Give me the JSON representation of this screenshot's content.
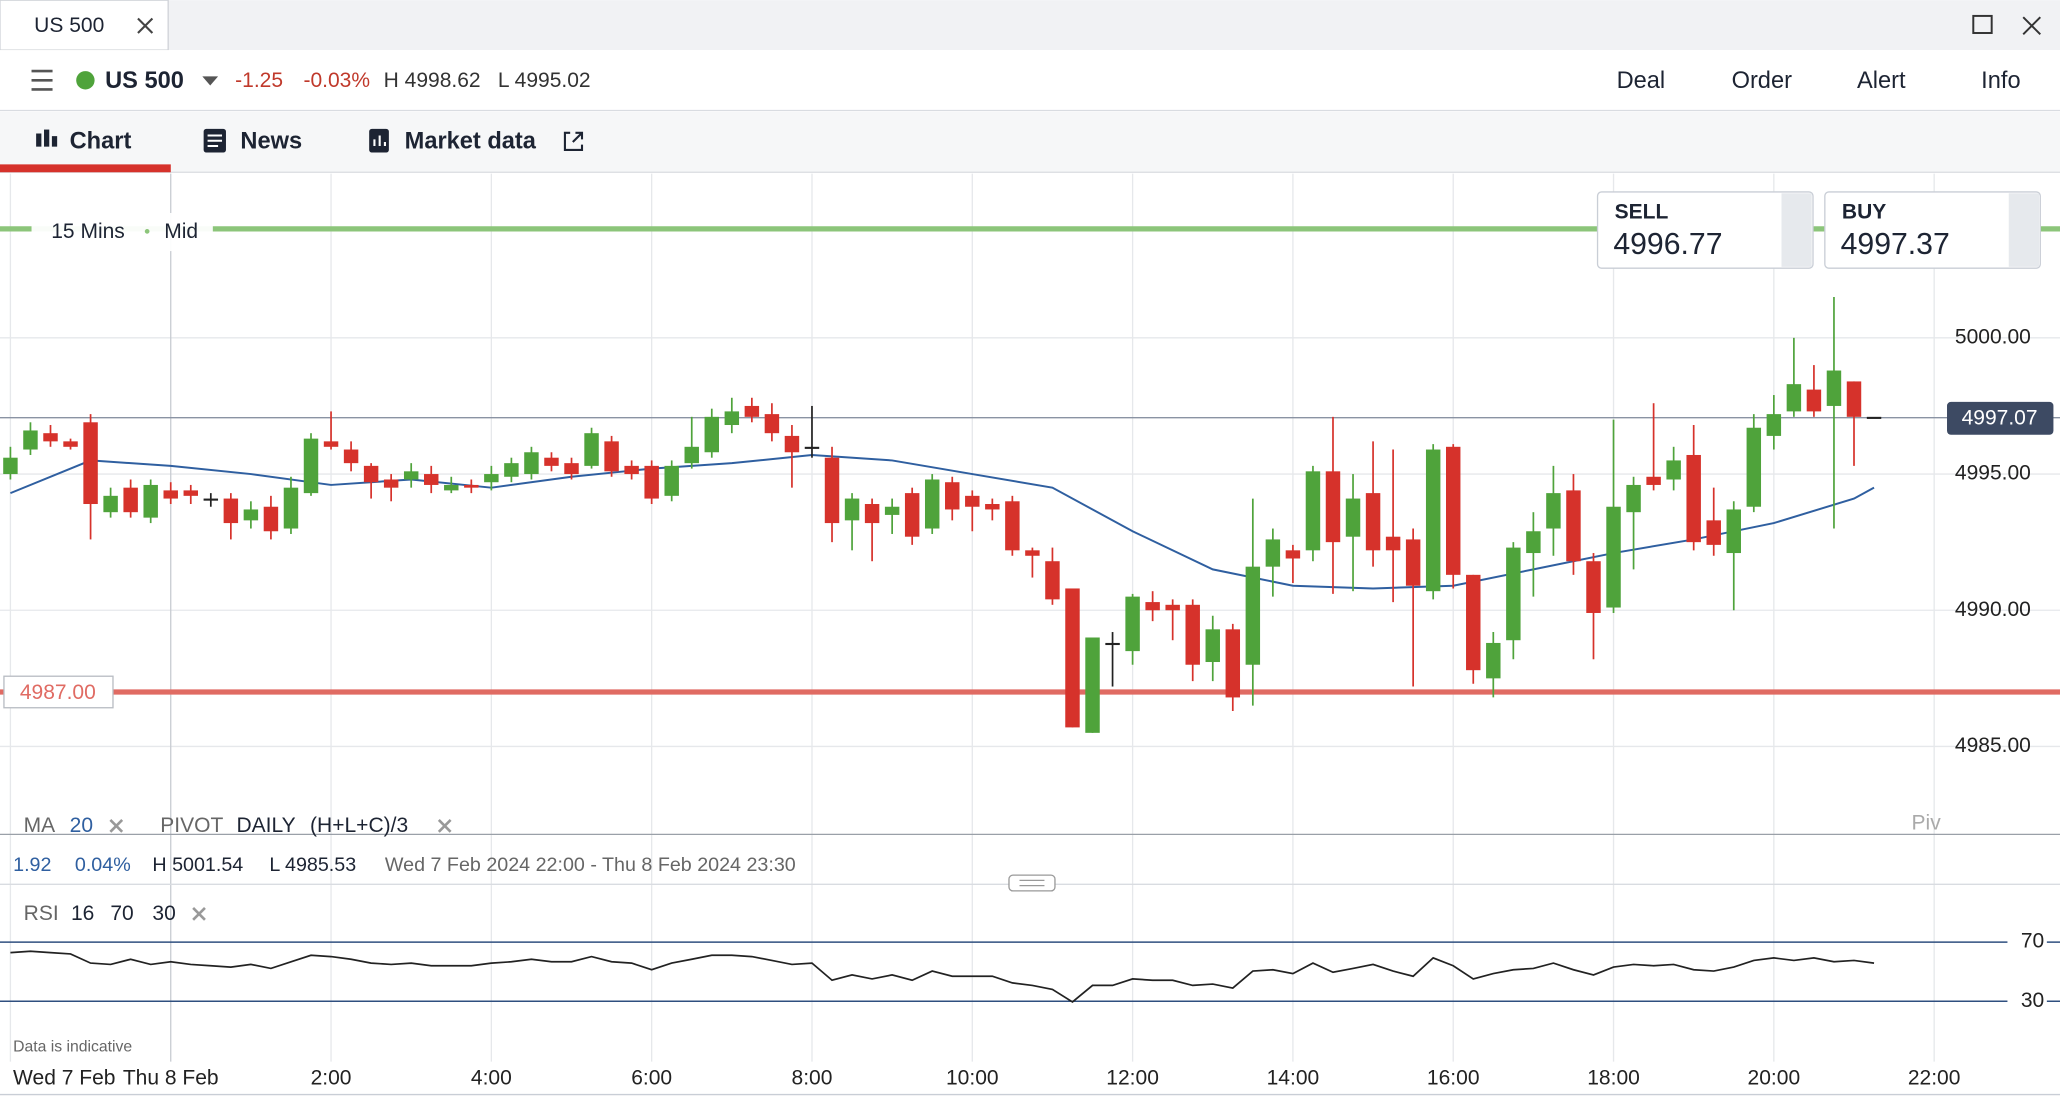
{
  "window_tab": "US 500",
  "header": {
    "instrument": "US 500",
    "change": "-1.25",
    "change_pct": "-0.03%",
    "high": "H 4998.62",
    "low": "L 4995.02",
    "actions": [
      "Deal",
      "Order",
      "Alert",
      "Info"
    ]
  },
  "tabs": [
    "Chart",
    "News",
    "Market data"
  ],
  "quote": {
    "sell_label": "SELL",
    "sell": "4996.77",
    "buy_label": "BUY",
    "buy": "4997.37"
  },
  "chart_data": {
    "type": "candlestick",
    "interval": "15 Mins",
    "price_type": "Mid",
    "up_color": "#4fa33b",
    "down_color": "#d6322b",
    "flat_color": "#222222",
    "grid": true,
    "xlim": [
      21.87,
      47.57
    ],
    "xticks": [
      {
        "value": 22,
        "label": "Wed 7 Feb"
      },
      {
        "value": 24,
        "label": "Thu 8 Feb"
      },
      {
        "value": 26,
        "label": "2:00"
      },
      {
        "value": 28,
        "label": "4:00"
      },
      {
        "value": 30,
        "label": "6:00"
      },
      {
        "value": 32,
        "label": "8:00"
      },
      {
        "value": 34,
        "label": "10:00"
      },
      {
        "value": 36,
        "label": "12:00"
      },
      {
        "value": 38,
        "label": "14:00"
      },
      {
        "value": 40,
        "label": "16:00"
      },
      {
        "value": 42,
        "label": "18:00"
      },
      {
        "value": 44,
        "label": "20:00"
      },
      {
        "value": 46,
        "label": "22:00"
      }
    ],
    "ylim": [
      4981.82,
      5006.03
    ],
    "yticks": [
      {
        "value": 4985,
        "label": "4985.00"
      },
      {
        "value": 4990,
        "label": "4990.00"
      },
      {
        "value": 4995,
        "label": "4995.00"
      },
      {
        "value": 5000,
        "label": "5000.00"
      }
    ],
    "candles": [
      {
        "x": 22,
        "open": 4995.0,
        "high": 4996.0,
        "low": 4994.8,
        "close": 4995.6
      },
      {
        "x": 22.25,
        "open": 4995.9,
        "high": 4996.9,
        "low": 4995.7,
        "close": 4996.6
      },
      {
        "x": 22.5,
        "open": 4996.5,
        "high": 4996.8,
        "low": 4996.0,
        "close": 4996.2
      },
      {
        "x": 22.75,
        "open": 4996.2,
        "high": 4996.3,
        "low": 4995.9,
        "close": 4996.0
      },
      {
        "x": 23,
        "open": 4996.9,
        "high": 4997.2,
        "low": 4992.6,
        "close": 4993.9
      },
      {
        "x": 23.25,
        "open": 4993.6,
        "high": 4994.5,
        "low": 4993.4,
        "close": 4994.2
      },
      {
        "x": 23.5,
        "open": 4994.5,
        "high": 4994.8,
        "low": 4993.4,
        "close": 4993.6
      },
      {
        "x": 23.75,
        "open": 4993.4,
        "high": 4994.8,
        "low": 4993.2,
        "close": 4994.6
      },
      {
        "x": 24,
        "open": 4994.4,
        "high": 4994.7,
        "low": 4993.9,
        "close": 4994.1
      },
      {
        "x": 24.25,
        "open": 4994.4,
        "high": 4994.6,
        "low": 4993.9,
        "close": 4994.2
      },
      {
        "x": 24.5,
        "open": 4994.1,
        "high": 4994.3,
        "low": 4993.8,
        "close": 4994.1
      },
      {
        "x": 24.75,
        "open": 4994.1,
        "high": 4994.3,
        "low": 4992.6,
        "close": 4993.2
      },
      {
        "x": 25,
        "open": 4993.3,
        "high": 4994.0,
        "low": 4993.0,
        "close": 4993.7
      },
      {
        "x": 25.25,
        "open": 4993.8,
        "high": 4994.2,
        "low": 4992.6,
        "close": 4992.9
      },
      {
        "x": 25.5,
        "open": 4993.0,
        "high": 4994.9,
        "low": 4992.8,
        "close": 4994.5
      },
      {
        "x": 25.75,
        "open": 4994.3,
        "high": 4996.5,
        "low": 4994.2,
        "close": 4996.3
      },
      {
        "x": 26,
        "open": 4996.2,
        "high": 4997.3,
        "low": 4995.9,
        "close": 4996.0
      },
      {
        "x": 26.25,
        "open": 4995.9,
        "high": 4996.2,
        "low": 4995.1,
        "close": 4995.4
      },
      {
        "x": 26.5,
        "open": 4995.3,
        "high": 4995.4,
        "low": 4994.1,
        "close": 4994.7
      },
      {
        "x": 26.75,
        "open": 4994.8,
        "high": 4995.0,
        "low": 4994.0,
        "close": 4994.5
      },
      {
        "x": 27,
        "open": 4994.8,
        "high": 4995.4,
        "low": 4994.5,
        "close": 4995.1
      },
      {
        "x": 27.25,
        "open": 4995.0,
        "high": 4995.3,
        "low": 4994.3,
        "close": 4994.6
      },
      {
        "x": 27.5,
        "open": 4994.4,
        "high": 4994.9,
        "low": 4994.3,
        "close": 4994.6
      },
      {
        "x": 27.75,
        "open": 4994.6,
        "high": 4994.8,
        "low": 4994.3,
        "close": 4994.5
      },
      {
        "x": 28,
        "open": 4994.7,
        "high": 4995.3,
        "low": 4994.4,
        "close": 4995.0
      },
      {
        "x": 28.25,
        "open": 4994.9,
        "high": 4995.6,
        "low": 4994.7,
        "close": 4995.4
      },
      {
        "x": 28.5,
        "open": 4995.0,
        "high": 4996.0,
        "low": 4994.8,
        "close": 4995.8
      },
      {
        "x": 28.75,
        "open": 4995.6,
        "high": 4995.8,
        "low": 4995.1,
        "close": 4995.3
      },
      {
        "x": 29,
        "open": 4995.4,
        "high": 4995.6,
        "low": 4994.8,
        "close": 4995.0
      },
      {
        "x": 29.25,
        "open": 4995.3,
        "high": 4996.7,
        "low": 4995.2,
        "close": 4996.5
      },
      {
        "x": 29.5,
        "open": 4996.2,
        "high": 4996.4,
        "low": 4994.9,
        "close": 4995.1
      },
      {
        "x": 29.75,
        "open": 4995.3,
        "high": 4995.5,
        "low": 4994.8,
        "close": 4995.0
      },
      {
        "x": 30,
        "open": 4995.3,
        "high": 4995.5,
        "low": 4993.9,
        "close": 4994.1
      },
      {
        "x": 30.25,
        "open": 4994.2,
        "high": 4995.5,
        "low": 4994.0,
        "close": 4995.3
      },
      {
        "x": 30.5,
        "open": 4995.4,
        "high": 4997.1,
        "low": 4995.2,
        "close": 4996.0
      },
      {
        "x": 30.75,
        "open": 4995.8,
        "high": 4997.4,
        "low": 4995.6,
        "close": 4997.1
      },
      {
        "x": 31,
        "open": 4996.8,
        "high": 4997.8,
        "low": 4996.5,
        "close": 4997.3
      },
      {
        "x": 31.25,
        "open": 4997.5,
        "high": 4997.8,
        "low": 4996.9,
        "close": 4997.1
      },
      {
        "x": 31.5,
        "open": 4997.2,
        "high": 4997.6,
        "low": 4996.2,
        "close": 4996.5
      },
      {
        "x": 31.75,
        "open": 4996.4,
        "high": 4996.8,
        "low": 4994.5,
        "close": 4995.8
      },
      {
        "x": 32,
        "open": 4996.0,
        "high": 4997.5,
        "low": 4995.6,
        "close": 4996.0
      },
      {
        "x": 32.25,
        "open": 4995.6,
        "high": 4996.0,
        "low": 4992.5,
        "close": 4993.2
      },
      {
        "x": 32.5,
        "open": 4993.3,
        "high": 4994.3,
        "low": 4992.2,
        "close": 4994.1
      },
      {
        "x": 32.75,
        "open": 4993.9,
        "high": 4994.1,
        "low": 4991.8,
        "close": 4993.2
      },
      {
        "x": 33,
        "open": 4993.5,
        "high": 4994.1,
        "low": 4992.8,
        "close": 4993.8
      },
      {
        "x": 33.25,
        "open": 4994.3,
        "high": 4994.5,
        "low": 4992.4,
        "close": 4992.7
      },
      {
        "x": 33.5,
        "open": 4993.0,
        "high": 4995.0,
        "low": 4992.8,
        "close": 4994.8
      },
      {
        "x": 33.75,
        "open": 4994.7,
        "high": 4994.9,
        "low": 4993.3,
        "close": 4993.7
      },
      {
        "x": 34,
        "open": 4994.2,
        "high": 4994.4,
        "low": 4992.9,
        "close": 4993.8
      },
      {
        "x": 34.25,
        "open": 4993.9,
        "high": 4994.1,
        "low": 4993.3,
        "close": 4993.7
      },
      {
        "x": 34.5,
        "open": 4994.0,
        "high": 4994.2,
        "low": 4992.0,
        "close": 4992.2
      },
      {
        "x": 34.75,
        "open": 4992.2,
        "high": 4992.3,
        "low": 4991.2,
        "close": 4992.0
      },
      {
        "x": 35,
        "open": 4991.8,
        "high": 4992.3,
        "low": 4990.2,
        "close": 4990.4
      },
      {
        "x": 35.25,
        "open": 4990.8,
        "high": 4990.8,
        "low": 4985.7,
        "close": 4985.7
      },
      {
        "x": 35.5,
        "open": 4985.5,
        "high": 4989.0,
        "low": 4985.5,
        "close": 4989.0
      },
      {
        "x": 35.75,
        "open": 4988.8,
        "high": 4989.2,
        "low": 4987.2,
        "close": 4988.8
      },
      {
        "x": 36,
        "open": 4988.5,
        "high": 4990.6,
        "low": 4988.0,
        "close": 4990.5
      },
      {
        "x": 36.25,
        "open": 4990.3,
        "high": 4990.7,
        "low": 4989.6,
        "close": 4990.0
      },
      {
        "x": 36.5,
        "open": 4990.2,
        "high": 4990.4,
        "low": 4988.9,
        "close": 4990.0
      },
      {
        "x": 36.75,
        "open": 4990.2,
        "high": 4990.4,
        "low": 4987.4,
        "close": 4988.0
      },
      {
        "x": 37,
        "open": 4988.1,
        "high": 4989.8,
        "low": 4987.4,
        "close": 4989.3
      },
      {
        "x": 37.25,
        "open": 4989.3,
        "high": 4989.5,
        "low": 4986.3,
        "close": 4986.8
      },
      {
        "x": 37.5,
        "open": 4988.0,
        "high": 4994.1,
        "low": 4986.5,
        "close": 4991.6
      },
      {
        "x": 37.75,
        "open": 4991.6,
        "high": 4993.0,
        "low": 4990.5,
        "close": 4992.6
      },
      {
        "x": 38,
        "open": 4992.2,
        "high": 4992.4,
        "low": 4991.0,
        "close": 4991.9
      },
      {
        "x": 38.25,
        "open": 4992.2,
        "high": 4995.3,
        "low": 4991.8,
        "close": 4995.1
      },
      {
        "x": 38.5,
        "open": 4995.1,
        "high": 4997.1,
        "low": 4990.6,
        "close": 4992.5
      },
      {
        "x": 38.75,
        "open": 4992.7,
        "high": 4995.0,
        "low": 4990.7,
        "close": 4994.1
      },
      {
        "x": 39,
        "open": 4994.3,
        "high": 4996.2,
        "low": 4991.6,
        "close": 4992.2
      },
      {
        "x": 39.25,
        "open": 4992.7,
        "high": 4995.9,
        "low": 4990.3,
        "close": 4992.2
      },
      {
        "x": 39.5,
        "open": 4992.6,
        "high": 4993.0,
        "low": 4987.2,
        "close": 4990.9
      },
      {
        "x": 39.75,
        "open": 4990.7,
        "high": 4996.1,
        "low": 4990.4,
        "close": 4995.9
      },
      {
        "x": 40,
        "open": 4996.0,
        "high": 4996.1,
        "low": 4990.8,
        "close": 4991.3
      },
      {
        "x": 40.25,
        "open": 4991.3,
        "high": 4991.3,
        "low": 4987.3,
        "close": 4987.8
      },
      {
        "x": 40.5,
        "open": 4987.5,
        "high": 4989.2,
        "low": 4986.8,
        "close": 4988.8
      },
      {
        "x": 40.75,
        "open": 4988.9,
        "high": 4992.5,
        "low": 4988.2,
        "close": 4992.3
      },
      {
        "x": 41,
        "open": 4992.1,
        "high": 4993.6,
        "low": 4990.5,
        "close": 4992.9
      },
      {
        "x": 41.25,
        "open": 4993.0,
        "high": 4995.3,
        "low": 4992.0,
        "close": 4994.3
      },
      {
        "x": 41.5,
        "open": 4994.4,
        "high": 4995.0,
        "low": 4991.3,
        "close": 4991.8
      },
      {
        "x": 41.75,
        "open": 4991.8,
        "high": 4992.1,
        "low": 4988.2,
        "close": 4989.9
      },
      {
        "x": 42,
        "open": 4990.1,
        "high": 4997.0,
        "low": 4989.9,
        "close": 4993.8
      },
      {
        "x": 42.25,
        "open": 4993.6,
        "high": 4994.9,
        "low": 4991.5,
        "close": 4994.6
      },
      {
        "x": 42.5,
        "open": 4994.9,
        "high": 4997.6,
        "low": 4994.4,
        "close": 4994.6
      },
      {
        "x": 42.75,
        "open": 4994.8,
        "high": 4996.0,
        "low": 4994.4,
        "close": 4995.5
      },
      {
        "x": 43,
        "open": 4995.7,
        "high": 4996.8,
        "low": 4992.2,
        "close": 4992.5
      },
      {
        "x": 43.25,
        "open": 4993.3,
        "high": 4994.5,
        "low": 4992.0,
        "close": 4992.4
      },
      {
        "x": 43.5,
        "open": 4992.1,
        "high": 4994.0,
        "low": 4990.0,
        "close": 4993.7
      },
      {
        "x": 43.75,
        "open": 4993.8,
        "high": 4997.2,
        "low": 4993.6,
        "close": 4996.7
      },
      {
        "x": 44,
        "open": 4996.4,
        "high": 4997.9,
        "low": 4995.9,
        "close": 4997.2
      },
      {
        "x": 44.25,
        "open": 4997.3,
        "high": 5000.0,
        "low": 4997.1,
        "close": 4998.3
      },
      {
        "x": 44.5,
        "open": 4998.1,
        "high": 4999.0,
        "low": 4997.1,
        "close": 4997.3
      },
      {
        "x": 44.75,
        "open": 4997.5,
        "high": 5001.5,
        "low": 4993.0,
        "close": 4998.8
      },
      {
        "x": 45,
        "open": 4998.4,
        "high": 4998.4,
        "low": 4995.3,
        "close": 4997.1
      },
      {
        "x": 45.25,
        "open": 4997.1,
        "high": 4997.1,
        "low": 4997.1,
        "close": 4997.1
      }
    ],
    "ma": {
      "name": "MA",
      "period": 20,
      "color": "#2f5fa0",
      "x": [
        22,
        23,
        24,
        25,
        26,
        27,
        28,
        29,
        30,
        31,
        32,
        33,
        34,
        35,
        36,
        37,
        38,
        39,
        40,
        41,
        42,
        43,
        44,
        45,
        45.25
      ],
      "values": [
        4994.3,
        4995.5,
        4995.3,
        4995.0,
        4994.6,
        4994.8,
        4994.5,
        4994.9,
        4995.2,
        4995.4,
        4995.7,
        4995.5,
        4995.0,
        4994.5,
        4992.9,
        4991.5,
        4990.9,
        4990.8,
        4990.9,
        4991.5,
        4992.1,
        4992.6,
        4993.2,
        4994.1,
        4994.5
      ]
    },
    "pivot": {
      "name": "PIVOT",
      "period": "DAILY",
      "formula": "(H+L+C)/3",
      "label": "Piv"
    },
    "levels": [
      {
        "value": 5004.0,
        "color": "#8cc57a"
      },
      {
        "value": 4987.0,
        "label": "4987.00",
        "color": "#e06b63"
      }
    ],
    "last_price": {
      "value": 4997.07,
      "label": "4997.07"
    },
    "summary": {
      "change": "1.92",
      "change_pct": "0.04%",
      "high": "H 5001.54",
      "low": "L 4985.53",
      "range": "Wed 7 Feb 2024 22:00 - Thu 8 Feb 2024 23:30"
    },
    "rsi": {
      "name": "RSI",
      "period": 16,
      "color": "#222222",
      "line_color": "#2f4f7f",
      "ylim": [
        -10.9,
        100.2
      ],
      "yticks": [
        30,
        70
      ],
      "values": [
        62.9,
        63.8,
        62.9,
        62.0,
        55.8,
        54.9,
        58.4,
        54.9,
        56.7,
        54.9,
        54.0,
        53.1,
        54.9,
        52.2,
        56.7,
        61.1,
        60.2,
        58.4,
        55.8,
        54.9,
        55.8,
        54.0,
        54.0,
        54.0,
        55.8,
        56.7,
        58.4,
        56.7,
        56.7,
        60.2,
        56.7,
        55.8,
        51.3,
        55.8,
        58.4,
        61.1,
        61.1,
        60.2,
        57.6,
        54.9,
        55.8,
        44.2,
        47.8,
        45.1,
        47.8,
        44.2,
        50.4,
        46.9,
        46.9,
        46.9,
        42.4,
        40.7,
        38.0,
        29.5,
        40.7,
        40.7,
        45.1,
        44.2,
        44.2,
        40.7,
        41.6,
        38.9,
        50.4,
        51.3,
        48.7,
        55.8,
        49.6,
        52.2,
        54.9,
        50.4,
        46.9,
        59.3,
        54.0,
        45.1,
        48.7,
        51.3,
        52.2,
        55.8,
        51.3,
        47.8,
        53.1,
        54.9,
        54.0,
        54.9,
        51.3,
        50.4,
        53.1,
        57.6,
        59.3,
        57.6,
        59.3,
        56.7,
        57.6,
        55.8
      ]
    },
    "footnote": "Data is indicative"
  }
}
